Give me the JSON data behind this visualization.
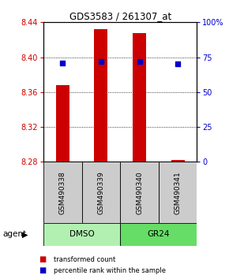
{
  "title": "GDS3583 / 261307_at",
  "samples": [
    "GSM490338",
    "GSM490339",
    "GSM490340",
    "GSM490341"
  ],
  "groups": [
    "DMSO",
    "DMSO",
    "GR24",
    "GR24"
  ],
  "group_labels": [
    "DMSO",
    "GR24"
  ],
  "bar_color": "#cc0000",
  "dot_color": "#0000cc",
  "ylim_left": [
    8.28,
    8.44
  ],
  "yticks_left": [
    8.28,
    8.32,
    8.36,
    8.4,
    8.44
  ],
  "yticks_right": [
    0,
    25,
    50,
    75,
    100
  ],
  "ylabel_left_color": "#cc0000",
  "ylabel_right_color": "#0000cc",
  "bar_bottoms": [
    8.28,
    8.28,
    8.28,
    8.28
  ],
  "bar_tops": [
    8.368,
    8.432,
    8.428,
    8.282
  ],
  "dot_values_pct": [
    71,
    72,
    72,
    70
  ],
  "sample_box_color": "#cccccc",
  "legend_items": [
    "transformed count",
    "percentile rank within the sample"
  ],
  "agent_label": "agent",
  "dmso_color": "#b2f0b2",
  "gr24_color": "#66dd66"
}
